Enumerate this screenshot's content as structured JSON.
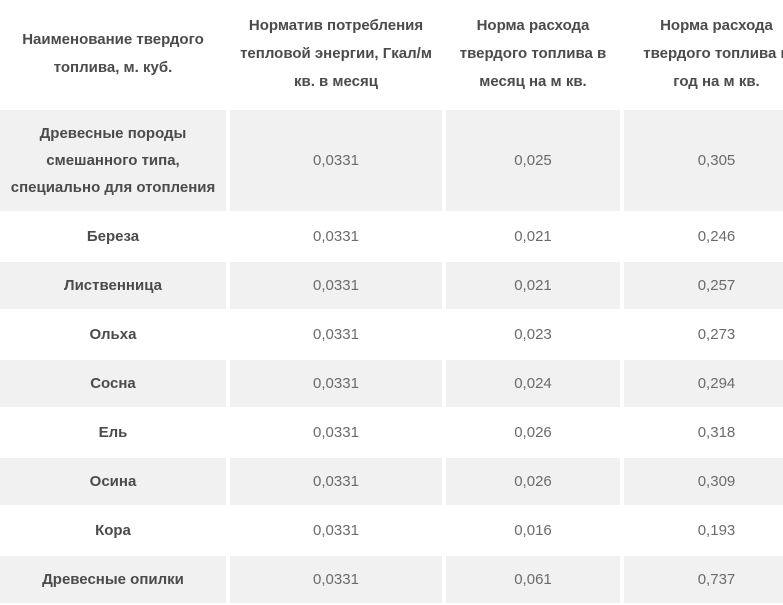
{
  "colors": {
    "page_background": "#ffffff",
    "alt_row_background": "#f1f1f1",
    "header_text": "#4b4b4b",
    "fuel_name_text": "#4b4b4b",
    "value_text": "#6b6b6b"
  },
  "table": {
    "headers": [
      {
        "label": "Наименование твердого топлива, м. куб."
      },
      {
        "label": "Норматив потребления тепловой энергии, Гкал/м кв. в месяц"
      },
      {
        "label": "Норма расхода твердого топлива в месяц на м кв."
      },
      {
        "label": "Норма расхода твердого топлива в год на м кв."
      }
    ],
    "rows": [
      {
        "name": "Древесные породы смешанного типа, специально для отопления",
        "norm_gcal": "0,0331",
        "month_rate": "0,025",
        "year_rate": "0,305"
      },
      {
        "name": "Береза",
        "norm_gcal": "0,0331",
        "month_rate": "0,021",
        "year_rate": "0,246"
      },
      {
        "name": "Лиственница",
        "norm_gcal": "0,0331",
        "month_rate": "0,021",
        "year_rate": "0,257"
      },
      {
        "name": "Ольха",
        "norm_gcal": "0,0331",
        "month_rate": "0,023",
        "year_rate": "0,273"
      },
      {
        "name": "Сосна",
        "norm_gcal": "0,0331",
        "month_rate": "0,024",
        "year_rate": "0,294"
      },
      {
        "name": "Ель",
        "norm_gcal": "0,0331",
        "month_rate": "0,026",
        "year_rate": "0,318"
      },
      {
        "name": "Осина",
        "norm_gcal": "0,0331",
        "month_rate": "0,026",
        "year_rate": "0,309"
      },
      {
        "name": "Кора",
        "norm_gcal": "0,0331",
        "month_rate": "0,016",
        "year_rate": "0,193"
      },
      {
        "name": "Древесные опилки",
        "norm_gcal": "0,0331",
        "month_rate": "0,061",
        "year_rate": "0,737"
      }
    ]
  }
}
